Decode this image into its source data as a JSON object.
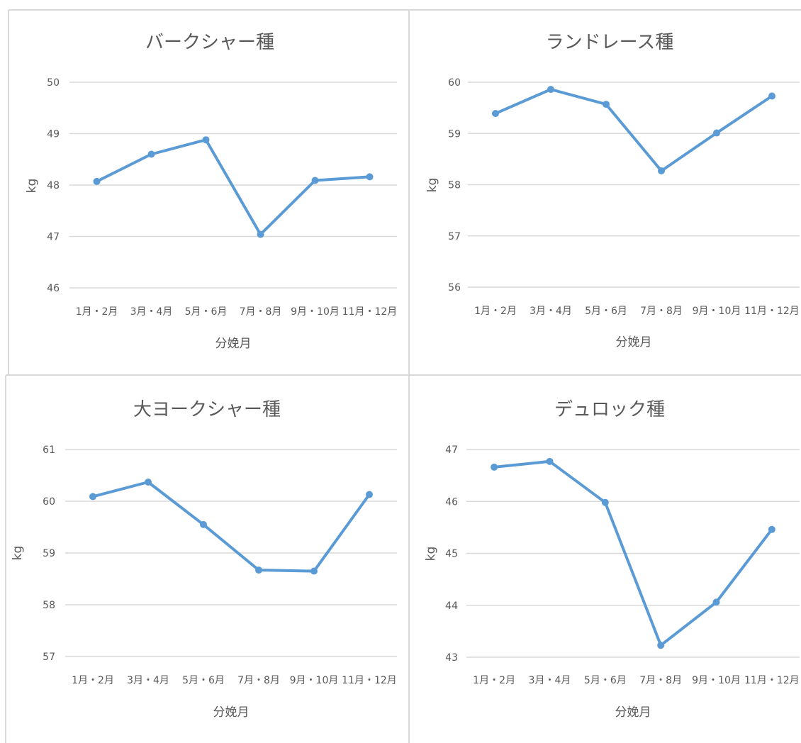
{
  "chart_data": [
    {
      "type": "line",
      "title": "バークシャー種",
      "xlabel": "分娩月",
      "ylabel": "kg",
      "categories": [
        "1月・2月",
        "3月・4月",
        "5月・6月",
        "7月・8月",
        "9月・10月",
        "11月・12月"
      ],
      "series": [
        {
          "values": [
            48.07,
            48.6,
            48.88,
            47.04,
            48.09,
            48.16
          ]
        }
      ],
      "yticks": [
        "46",
        "47",
        "48",
        "49",
        "50"
      ],
      "ylim": [
        46,
        50
      ],
      "grid": true,
      "legend": "none"
    },
    {
      "type": "line",
      "title": "ランドレース種",
      "xlabel": "分娩月",
      "ylabel": "kg",
      "categories": [
        "1月・2月",
        "3月・4月",
        "5月・6月",
        "7月・8月",
        "9月・10月",
        "11月・12月"
      ],
      "series": [
        {
          "values": [
            59.39,
            59.86,
            59.57,
            58.27,
            59.01,
            59.73
          ]
        }
      ],
      "yticks": [
        "56",
        "57",
        "58",
        "59",
        "60"
      ],
      "ylim": [
        56,
        60
      ],
      "grid": true,
      "legend": "none"
    },
    {
      "type": "line",
      "title": "大ヨークシャー種",
      "xlabel": "分娩月",
      "ylabel": "kg",
      "categories": [
        "1月・2月",
        "3月・4月",
        "5月・6月",
        "7月・8月",
        "9月・10月",
        "11月・12月"
      ],
      "series": [
        {
          "values": [
            60.09,
            60.37,
            59.55,
            58.67,
            58.65,
            60.13
          ]
        }
      ],
      "yticks": [
        "57",
        "58",
        "59",
        "60",
        "61"
      ],
      "ylim": [
        57,
        61
      ],
      "grid": true,
      "legend": "none"
    },
    {
      "type": "line",
      "title": "デュロック種",
      "xlabel": "分娩月",
      "ylabel": "kg",
      "categories": [
        "1月・2月",
        "3月・4月",
        "5月・6月",
        "7月・8月",
        "9月・10月",
        "11月・12月"
      ],
      "series": [
        {
          "values": [
            46.66,
            46.77,
            45.98,
            43.23,
            44.06,
            45.46
          ]
        }
      ],
      "yticks": [
        "43",
        "44",
        "45",
        "46",
        "47"
      ],
      "ylim": [
        43,
        47
      ],
      "grid": true,
      "legend": "none"
    }
  ],
  "colors": {
    "series": "#5b9bd5",
    "gridline": "#d9d9d9",
    "text": "#595959",
    "frame": "#d9d9d9"
  }
}
